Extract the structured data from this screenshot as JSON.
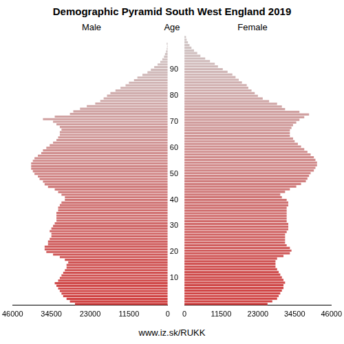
{
  "chart_data": {
    "type": "bar",
    "title": "Demographic Pyramid South West England 2019",
    "y_label": "Age",
    "source": "www.iz.sk/RUKK",
    "orientation": "horizontal",
    "grid": false,
    "categories": [
      null,
      null,
      null,
      null,
      null,
      null,
      null,
      null,
      null,
      null,
      10,
      null,
      null,
      null,
      null,
      null,
      null,
      null,
      null,
      null,
      20,
      null,
      null,
      null,
      null,
      null,
      null,
      null,
      null,
      null,
      30,
      null,
      null,
      null,
      null,
      null,
      null,
      null,
      null,
      null,
      40,
      null,
      null,
      null,
      null,
      null,
      null,
      null,
      null,
      null,
      50,
      null,
      null,
      null,
      null,
      null,
      null,
      null,
      null,
      null,
      60,
      null,
      null,
      null,
      null,
      null,
      null,
      null,
      null,
      null,
      70,
      null,
      null,
      null,
      null,
      null,
      null,
      null,
      null,
      null,
      80,
      null,
      null,
      null,
      null,
      null,
      null,
      null,
      null,
      null,
      90,
      null,
      null,
      null,
      null,
      null,
      null,
      null,
      null,
      null,
      null
    ],
    "xlim": [
      0,
      46000
    ],
    "xticks": [
      0,
      11500,
      23000,
      34500,
      46000
    ],
    "colors": [
      "#d04040",
      "#d04141",
      "#d04242",
      "#d04444",
      "#d04545",
      "#d04646",
      "#d04848",
      "#d04949",
      "#d04a4a",
      "#d04c4c",
      "#d04d4d",
      "#d04e4e",
      "#d05050",
      "#d05151",
      "#d05353",
      "#d05454",
      "#d05555",
      "#d05757",
      "#d05858",
      "#d05959",
      "#d05b5b",
      "#d05c5c",
      "#d05d5d",
      "#d05f5f",
      "#d06060",
      "#d06262",
      "#d06363",
      "#d06464",
      "#d06666",
      "#d06767",
      "#d06868",
      "#d06a6a",
      "#d06b6b",
      "#d06c6c",
      "#d06e6e",
      "#d06f6f",
      "#d07070",
      "#d07272",
      "#d07373",
      "#d07575",
      "#d07676",
      "#d07777",
      "#d07979",
      "#d07a7a",
      "#d07b7b",
      "#d07d7d",
      "#d07e7e",
      "#d07f7f",
      "#d08181",
      "#d08282",
      "#d08484",
      "#d08585",
      "#d08686",
      "#d08888",
      "#d08989",
      "#d08a8a",
      "#d08c8c",
      "#d08d8d",
      "#d08e8e",
      "#d09090",
      "#d09191",
      "#d09292",
      "#d09494",
      "#d09595",
      "#d09797",
      "#d09898",
      "#d09999",
      "#d09b9b",
      "#d09c9c",
      "#d09d9d",
      "#d09f9f",
      "#d0a0a0",
      "#d0a1a1",
      "#d0a3a3",
      "#d0a4a4",
      "#d0a6a6",
      "#d0a7a7",
      "#d0a8a8",
      "#d0aaaa",
      "#d0abab",
      "#d0acac",
      "#d0aeae",
      "#d0afaf",
      "#d0b0b0",
      "#d0b2b2",
      "#d0b3b3",
      "#d0b4b4",
      "#d0b6b6",
      "#d0b7b7",
      "#d0b9b9",
      "#d0baba",
      "#d0bbbb",
      "#d0bdbd",
      "#d0bebe",
      "#d0bfbf",
      "#d0c1c1",
      "#d0c2c2",
      "#d0c3c3",
      "#d0c5c5",
      "#d0c6c6",
      "#d0c8c8"
    ],
    "series": [
      {
        "name": "Male",
        "values": [
          27500,
          29000,
          30000,
          31000,
          31500,
          32000,
          32500,
          33000,
          33500,
          32500,
          32000,
          31500,
          31000,
          30500,
          30000,
          30000,
          29500,
          30500,
          32000,
          34000,
          36000,
          36500,
          36500,
          35500,
          35500,
          35000,
          34500,
          34500,
          35000,
          34500,
          34000,
          33500,
          33000,
          33000,
          33000,
          33000,
          32500,
          32500,
          32000,
          31500,
          30500,
          30500,
          31500,
          32500,
          33500,
          35500,
          36500,
          37000,
          38000,
          38500,
          39500,
          40000,
          40500,
          40500,
          40500,
          40000,
          39500,
          38500,
          37500,
          37000,
          36000,
          35000,
          34000,
          33000,
          32500,
          32000,
          32000,
          31500,
          32000,
          33000,
          34000,
          37000,
          33500,
          29000,
          28000,
          26000,
          24000,
          21500,
          20000,
          19000,
          18000,
          17000,
          15500,
          14000,
          12500,
          11500,
          10000,
          9000,
          7500,
          6000,
          5000,
          4000,
          3000,
          2200,
          1600,
          1100,
          800,
          500,
          300,
          200,
          300
        ]
      },
      {
        "name": "Female",
        "values": [
          26000,
          27500,
          29000,
          29500,
          30000,
          30500,
          31000,
          31000,
          31500,
          31000,
          30500,
          30000,
          29500,
          29000,
          28500,
          28500,
          28500,
          29000,
          31000,
          33000,
          33500,
          33000,
          32000,
          31500,
          31500,
          31500,
          31500,
          32000,
          32500,
          32500,
          32500,
          32000,
          32000,
          32000,
          32000,
          32000,
          32000,
          32500,
          32500,
          32000,
          30500,
          30000,
          31500,
          33000,
          35000,
          36500,
          38000,
          38500,
          39000,
          39500,
          40500,
          41000,
          41500,
          41500,
          41000,
          40500,
          39500,
          38500,
          37500,
          36500,
          35500,
          34500,
          34000,
          33000,
          33000,
          33000,
          33500,
          34000,
          35000,
          36000,
          37500,
          39000,
          36000,
          31500,
          30500,
          29000,
          26500,
          24500,
          23000,
          22000,
          21000,
          20000,
          19500,
          18000,
          17000,
          16000,
          15000,
          13500,
          12000,
          10500,
          9500,
          8000,
          6500,
          5000,
          4000,
          3000,
          2200,
          1600,
          1100,
          700,
          500
        ]
      }
    ]
  }
}
